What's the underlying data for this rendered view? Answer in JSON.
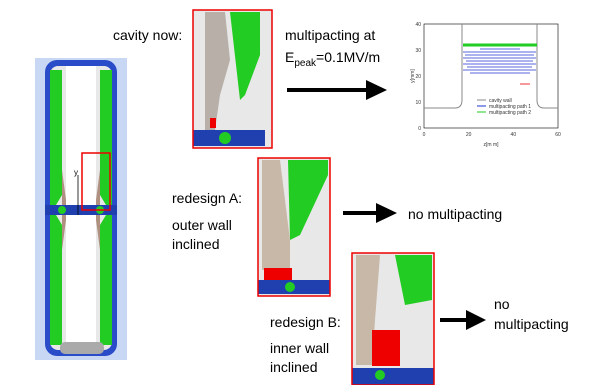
{
  "labels": {
    "cavity_now": "cavity now:",
    "multipacting_at": "multipacting at",
    "field": {
      "symbol": "E",
      "subscript": "peak",
      "value": "=0.1MV/m"
    },
    "redesign_a": {
      "title": "redesign A:",
      "description": [
        "outer wall",
        "inclined"
      ],
      "result": "no multipacting"
    },
    "redesign_b": {
      "title": "redesign B:",
      "description": [
        "inner wall",
        "inclined"
      ],
      "result": [
        "no",
        "multipacting"
      ]
    }
  },
  "cavity_axis": "y",
  "inset_plot": {
    "x_label": "z[m m]",
    "y_label": "y[mm]",
    "xticks": [
      "0",
      "20",
      "40",
      "60"
    ],
    "yticks": [
      "0",
      "10",
      "20",
      "30",
      "40"
    ],
    "legend": [
      "cavity wall",
      "multipacting path 1",
      "multipacting path 2"
    ]
  }
}
